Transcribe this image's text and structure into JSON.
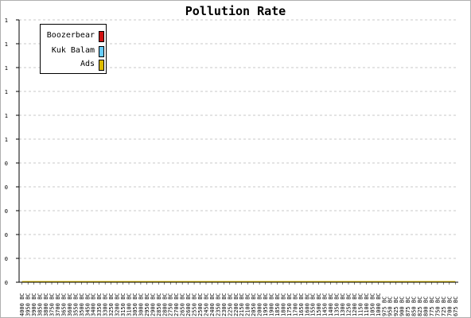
{
  "chart_data": {
    "type": "line",
    "title": "Pollution Rate",
    "xlabel": "",
    "ylabel": "",
    "categories": [
      "4000 BC",
      "3950 BC",
      "3900 BC",
      "3850 BC",
      "3800 BC",
      "3750 BC",
      "3700 BC",
      "3650 BC",
      "3600 BC",
      "3550 BC",
      "3500 BC",
      "3450 BC",
      "3400 BC",
      "3350 BC",
      "3300 BC",
      "3250 BC",
      "3200 BC",
      "3150 BC",
      "3100 BC",
      "3050 BC",
      "3000 BC",
      "2950 BC",
      "2900 BC",
      "2850 BC",
      "2800 BC",
      "2750 BC",
      "2700 BC",
      "2650 BC",
      "2600 BC",
      "2550 BC",
      "2500 BC",
      "2450 BC",
      "2400 BC",
      "2350 BC",
      "2300 BC",
      "2250 BC",
      "2200 BC",
      "2150 BC",
      "2100 BC",
      "2050 BC",
      "2000 BC",
      "1950 BC",
      "1900 BC",
      "1850 BC",
      "1800 BC",
      "1750 BC",
      "1700 BC",
      "1650 BC",
      "1600 BC",
      "1550 BC",
      "1500 BC",
      "1450 BC",
      "1400 BC",
      "1350 BC",
      "1300 BC",
      "1250 BC",
      "1200 BC",
      "1150 BC",
      "1100 BC",
      "1050 BC",
      "1000 BC",
      "975 BC",
      "950 BC",
      "925 BC",
      "900 BC",
      "875 BC",
      "850 BC",
      "825 BC",
      "800 BC",
      "775 BC",
      "750 BC",
      "725 BC",
      "700 BC",
      "675 BC"
    ],
    "y_tick_labels": [
      "0",
      "0",
      "0",
      "0",
      "0",
      "0",
      "1",
      "1",
      "1",
      "1",
      "1",
      "1"
    ],
    "ylim": [
      0,
      1
    ],
    "grid": true,
    "legend_placement": "top-left",
    "series": [
      {
        "name": "Boozerbear",
        "color": "#d01010",
        "values": [
          0,
          0,
          0,
          0,
          0,
          0,
          0,
          0,
          0,
          0,
          0,
          0,
          0,
          0,
          0,
          0,
          0,
          0,
          0,
          0,
          0,
          0,
          0,
          0,
          0,
          0,
          0,
          0,
          0,
          0,
          0,
          0,
          0,
          0,
          0,
          0,
          0,
          0,
          0,
          0,
          0,
          0,
          0,
          0,
          0,
          0,
          0,
          0,
          0,
          0,
          0,
          0,
          0,
          0,
          0,
          0,
          0,
          0,
          0,
          0,
          0,
          0,
          0,
          0,
          0,
          0,
          0,
          0,
          0,
          0,
          0,
          0,
          0,
          0
        ]
      },
      {
        "name": "Kuk Balam",
        "color": "#66ccff",
        "values": [
          0,
          0,
          0,
          0,
          0,
          0,
          0,
          0,
          0,
          0,
          0,
          0,
          0,
          0,
          0,
          0,
          0,
          0,
          0,
          0,
          0,
          0,
          0,
          0,
          0,
          0,
          0,
          0,
          0,
          0,
          0,
          0,
          0,
          0,
          0,
          0,
          0,
          0,
          0,
          0,
          0,
          0,
          0,
          0,
          0,
          0,
          0,
          0,
          0,
          0,
          0,
          0,
          0,
          0,
          0,
          0,
          0,
          0,
          0,
          0,
          0,
          0,
          0,
          0,
          0,
          0,
          0,
          0,
          0,
          0,
          0,
          0,
          0,
          0
        ]
      },
      {
        "name": "Ads",
        "color": "#ddbb00",
        "values": [
          0,
          0,
          0,
          0,
          0,
          0,
          0,
          0,
          0,
          0,
          0,
          0,
          0,
          0,
          0,
          0,
          0,
          0,
          0,
          0,
          0,
          0,
          0,
          0,
          0,
          0,
          0,
          0,
          0,
          0,
          0,
          0,
          0,
          0,
          0,
          0,
          0,
          0,
          0,
          0,
          0,
          0,
          0,
          0,
          0,
          0,
          0,
          0,
          0,
          0,
          0,
          0,
          0,
          0,
          0,
          0,
          0,
          0,
          0,
          0,
          0,
          0,
          0,
          0,
          0,
          0,
          0,
          0,
          0,
          0,
          0,
          0,
          0,
          0
        ]
      }
    ]
  }
}
